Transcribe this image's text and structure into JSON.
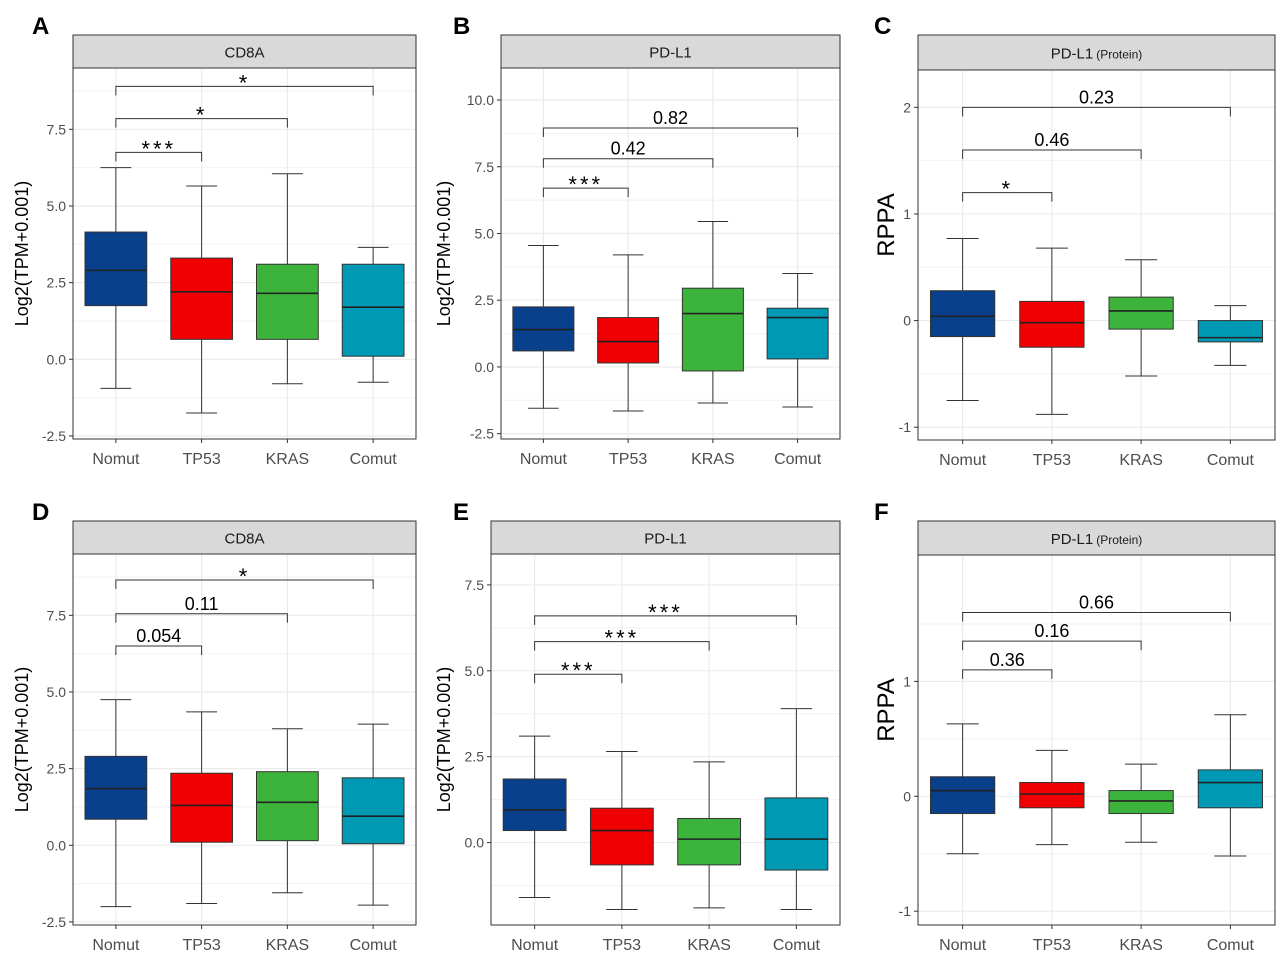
{
  "figure": {
    "colors": {
      "Nomut": "#08408c",
      "TP53": "#f00000",
      "KRAS": "#3cb43c",
      "Comut": "#0099b4"
    },
    "strip_fill": "#d9d9d9",
    "groups": [
      "Nomut",
      "TP53",
      "KRAS",
      "Comut"
    ]
  },
  "chart_data": [
    {
      "panel": "A",
      "type": "box",
      "title": "CD8A",
      "title_suffix": "",
      "ylabel": "Log2(TPM+0.001)",
      "ylim": [
        -2.6,
        9.5
      ],
      "yticks": [
        -2.5,
        0.0,
        2.5,
        5.0,
        7.5
      ],
      "ytick_labels": [
        "-2.5",
        "0.0",
        "2.5",
        "5.0",
        "7.5"
      ],
      "categories": [
        "Nomut",
        "TP53",
        "KRAS",
        "Comut"
      ],
      "boxes": [
        {
          "name": "Nomut",
          "min": -0.95,
          "q1": 1.75,
          "median": 2.9,
          "q3": 4.15,
          "max": 6.25
        },
        {
          "name": "TP53",
          "min": -1.75,
          "q1": 0.65,
          "median": 2.2,
          "q3": 3.3,
          "max": 5.65
        },
        {
          "name": "KRAS",
          "min": -0.8,
          "q1": 0.65,
          "median": 2.15,
          "q3": 3.1,
          "max": 6.05
        },
        {
          "name": "Comut",
          "min": -0.75,
          "q1": 0.1,
          "median": 1.7,
          "q3": 3.1,
          "max": 3.65
        }
      ],
      "comparisons": [
        {
          "from": "Nomut",
          "to": "TP53",
          "label": "***",
          "y": 6.75
        },
        {
          "from": "Nomut",
          "to": "KRAS",
          "label": "*",
          "y": 7.85
        },
        {
          "from": "Nomut",
          "to": "Comut",
          "label": "*",
          "y": 8.9
        }
      ]
    },
    {
      "panel": "B",
      "type": "box",
      "title": "PD-L1",
      "title_suffix": "",
      "ylabel": "Log2(TPM+0.001)",
      "ylim": [
        -2.7,
        11.2
      ],
      "yticks": [
        -2.5,
        0.0,
        2.5,
        5.0,
        7.5,
        10.0
      ],
      "ytick_labels": [
        "-2.5",
        "0.0",
        "2.5",
        "5.0",
        "7.5",
        "10.0"
      ],
      "categories": [
        "Nomut",
        "TP53",
        "KRAS",
        "Comut"
      ],
      "boxes": [
        {
          "name": "Nomut",
          "min": -1.55,
          "q1": 0.6,
          "median": 1.4,
          "q3": 2.25,
          "max": 4.55
        },
        {
          "name": "TP53",
          "min": -1.65,
          "q1": 0.15,
          "median": 0.95,
          "q3": 1.85,
          "max": 4.2
        },
        {
          "name": "KRAS",
          "min": -1.35,
          "q1": -0.15,
          "median": 2.0,
          "q3": 2.95,
          "max": 5.45
        },
        {
          "name": "Comut",
          "min": -1.5,
          "q1": 0.3,
          "median": 1.85,
          "q3": 2.2,
          "max": 3.5
        }
      ],
      "comparisons": [
        {
          "from": "Nomut",
          "to": "TP53",
          "label": "***",
          "y": 6.7
        },
        {
          "from": "Nomut",
          "to": "KRAS",
          "label": "0.42",
          "y": 7.8
        },
        {
          "from": "Nomut",
          "to": "Comut",
          "label": "0.82",
          "y": 8.95
        }
      ]
    },
    {
      "panel": "C",
      "type": "box",
      "title": "PD-L1",
      "title_suffix": "(Protein)",
      "ylabel": "RPPA",
      "ylim": [
        -1.12,
        2.35
      ],
      "yticks": [
        -1,
        0,
        1,
        2
      ],
      "ytick_labels": [
        "-1",
        "0",
        "1",
        "2"
      ],
      "categories": [
        "Nomut",
        "TP53",
        "KRAS",
        "Comut"
      ],
      "boxes": [
        {
          "name": "Nomut",
          "min": -0.75,
          "q1": -0.15,
          "median": 0.04,
          "q3": 0.28,
          "max": 0.77
        },
        {
          "name": "TP53",
          "min": -0.88,
          "q1": -0.25,
          "median": -0.02,
          "q3": 0.18,
          "max": 0.68
        },
        {
          "name": "KRAS",
          "min": -0.52,
          "q1": -0.08,
          "median": 0.09,
          "q3": 0.22,
          "max": 0.57
        },
        {
          "name": "Comut",
          "min": -0.42,
          "q1": -0.2,
          "median": -0.16,
          "q3": 0.0,
          "max": 0.14
        }
      ],
      "comparisons": [
        {
          "from": "Nomut",
          "to": "TP53",
          "label": "*",
          "y": 1.2
        },
        {
          "from": "Nomut",
          "to": "KRAS",
          "label": "0.46",
          "y": 1.6
        },
        {
          "from": "Nomut",
          "to": "Comut",
          "label": "0.23",
          "y": 2.0
        }
      ]
    },
    {
      "panel": "D",
      "type": "box",
      "title": "CD8A",
      "title_suffix": "",
      "ylabel": "Log2(TPM+0.001)",
      "ylim": [
        -2.6,
        9.5
      ],
      "yticks": [
        -2.5,
        0.0,
        2.5,
        5.0,
        7.5
      ],
      "ytick_labels": [
        "-2.5",
        "0.0",
        "2.5",
        "5.0",
        "7.5"
      ],
      "categories": [
        "Nomut",
        "TP53",
        "KRAS",
        "Comut"
      ],
      "boxes": [
        {
          "name": "Nomut",
          "min": -2.0,
          "q1": 0.85,
          "median": 1.85,
          "q3": 2.9,
          "max": 4.75
        },
        {
          "name": "TP53",
          "min": -1.9,
          "q1": 0.1,
          "median": 1.3,
          "q3": 2.35,
          "max": 4.35
        },
        {
          "name": "KRAS",
          "min": -1.55,
          "q1": 0.15,
          "median": 1.4,
          "q3": 2.4,
          "max": 3.8
        },
        {
          "name": "Comut",
          "min": -1.95,
          "q1": 0.05,
          "median": 0.95,
          "q3": 2.2,
          "max": 3.95
        }
      ],
      "comparisons": [
        {
          "from": "Nomut",
          "to": "TP53",
          "label": "0.054",
          "y": 6.5
        },
        {
          "from": "Nomut",
          "to": "KRAS",
          "label": "0.11",
          "y": 7.55
        },
        {
          "from": "Nomut",
          "to": "Comut",
          "label": "*",
          "y": 8.65
        }
      ]
    },
    {
      "panel": "E",
      "type": "box",
      "title": "PD-L1",
      "title_suffix": "",
      "ylabel": "Log2(TPM+0.001)",
      "ylim": [
        -2.4,
        8.4
      ],
      "yticks": [
        0.0,
        2.5,
        5.0,
        7.5
      ],
      "ytick_labels": [
        "0.0",
        "2.5",
        "5.0",
        "7.5"
      ],
      "categories": [
        "Nomut",
        "TP53",
        "KRAS",
        "Comut"
      ],
      "boxes": [
        {
          "name": "Nomut",
          "min": -1.6,
          "q1": 0.35,
          "median": 0.95,
          "q3": 1.85,
          "max": 3.1
        },
        {
          "name": "TP53",
          "min": -1.95,
          "q1": -0.65,
          "median": 0.35,
          "q3": 1.0,
          "max": 2.65
        },
        {
          "name": "KRAS",
          "min": -1.9,
          "q1": -0.65,
          "median": 0.1,
          "q3": 0.7,
          "max": 2.35
        },
        {
          "name": "Comut",
          "min": -1.95,
          "q1": -0.8,
          "median": 0.1,
          "q3": 1.3,
          "max": 3.9
        }
      ],
      "comparisons": [
        {
          "from": "Nomut",
          "to": "TP53",
          "label": "***",
          "y": 4.9
        },
        {
          "from": "Nomut",
          "to": "KRAS",
          "label": "***",
          "y": 5.85
        },
        {
          "from": "Nomut",
          "to": "Comut",
          "label": "***",
          "y": 6.6
        }
      ]
    },
    {
      "panel": "F",
      "type": "box",
      "title": "PD-L1",
      "title_suffix": "(Protein)",
      "ylabel": "RPPA",
      "ylim": [
        -1.12,
        2.1
      ],
      "yticks": [
        -1,
        0,
        1
      ],
      "ytick_labels": [
        "-1",
        "0",
        "1"
      ],
      "categories": [
        "Nomut",
        "TP53",
        "KRAS",
        "Comut"
      ],
      "boxes": [
        {
          "name": "Nomut",
          "min": -0.5,
          "q1": -0.15,
          "median": 0.05,
          "q3": 0.17,
          "max": 0.63
        },
        {
          "name": "TP53",
          "min": -0.42,
          "q1": -0.1,
          "median": 0.02,
          "q3": 0.12,
          "max": 0.4
        },
        {
          "name": "KRAS",
          "min": -0.4,
          "q1": -0.15,
          "median": -0.04,
          "q3": 0.05,
          "max": 0.28
        },
        {
          "name": "Comut",
          "min": -0.52,
          "q1": -0.1,
          "median": 0.12,
          "q3": 0.23,
          "max": 0.71
        }
      ],
      "comparisons": [
        {
          "from": "Nomut",
          "to": "TP53",
          "label": "0.36",
          "y": 1.1
        },
        {
          "from": "Nomut",
          "to": "KRAS",
          "label": "0.16",
          "y": 1.35
        },
        {
          "from": "Nomut",
          "to": "Comut",
          "label": "0.66",
          "y": 1.6
        }
      ]
    }
  ]
}
